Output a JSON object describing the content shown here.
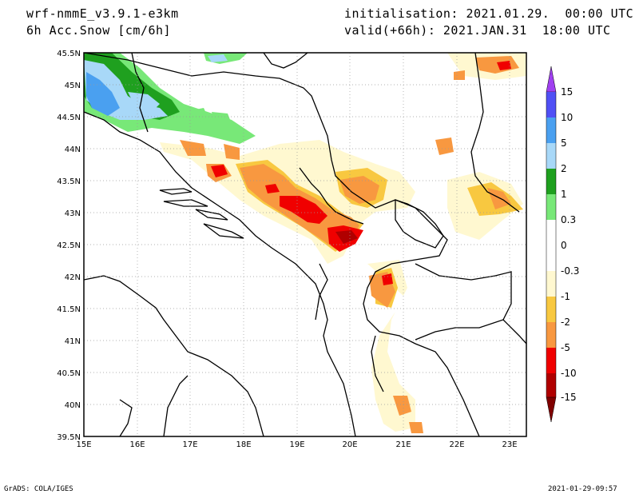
{
  "header": {
    "model": "wrf-nmmE_v3.9.1-e3km",
    "field": "6h Acc.Snow [cm/6h]",
    "init": "initialisation: 2021.01.29.  00:00 UTC",
    "valid": "valid(+66h): 2021.JAN.31  18:00 UTC"
  },
  "footer": {
    "left": "GrADS: COLA/IGES",
    "right": "2021-01-29-09:57"
  },
  "map": {
    "lon_ticks": [
      "15E",
      "16E",
      "17E",
      "18E",
      "19E",
      "20E",
      "21E",
      "22E",
      "23E"
    ],
    "lat_ticks": [
      "45.5N",
      "45N",
      "44.5N",
      "44N",
      "43.5N",
      "43N",
      "42.5N",
      "42N",
      "41.5N",
      "41N",
      "40.5N",
      "40N",
      "39.5N"
    ],
    "lon_range": [
      15,
      23.3
    ],
    "lat_range": [
      39.5,
      45.5
    ]
  },
  "colorbar": {
    "labels": [
      "15",
      "10",
      "5",
      "2",
      "1",
      "0.3",
      "0",
      "-0.3",
      "-1",
      "-2",
      "-5",
      "-10",
      "-15"
    ],
    "colors": {
      "top_arrow": "#a040f0",
      "c15": "#5050f5",
      "c10": "#4aa0f0",
      "c5": "#a8d8f8",
      "c2": "#1fa01f",
      "c1": "#78e878",
      "c03": "#ffffff",
      "c0": "#ffffff",
      "cm03": "#fff8d0",
      "cm1": "#f8c840",
      "cm2": "#f89840",
      "cm5": "#f00000",
      "cm10": "#b00000",
      "bottom_arrow": "#800000"
    }
  }
}
